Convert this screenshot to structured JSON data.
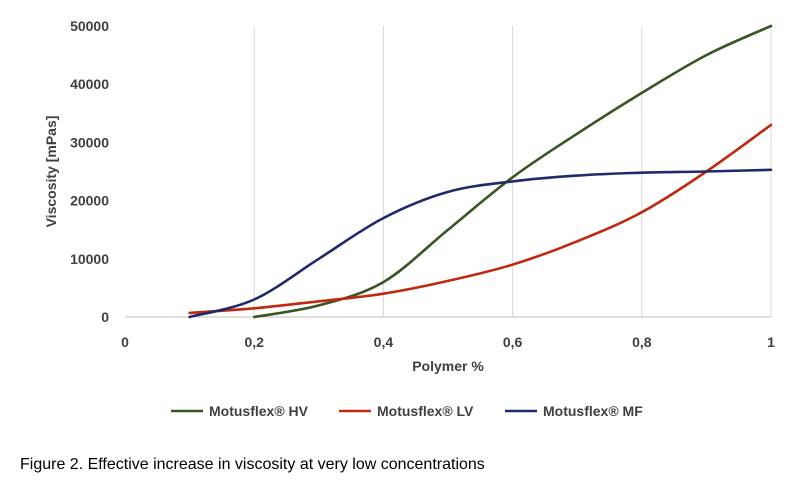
{
  "chart_data": {
    "type": "line",
    "title": "",
    "xlabel": "Polymer %",
    "ylabel": "Viscosity [mPas]",
    "xlim": [
      0,
      1
    ],
    "ylim": [
      0,
      50000
    ],
    "x_ticks": [
      0,
      0.2,
      0.4,
      0.6,
      0.8,
      1
    ],
    "x_tick_labels": [
      "0",
      "0,2",
      "0,4",
      "0,6",
      "0,8",
      "1"
    ],
    "y_ticks": [
      0,
      10000,
      20000,
      30000,
      40000,
      50000
    ],
    "y_tick_labels": [
      "0",
      "10000",
      "20000",
      "30000",
      "40000",
      "50000"
    ],
    "grid": "vertical",
    "legend_position": "bottom",
    "series": [
      {
        "name": "Motusflex® HV",
        "color": "#375623",
        "x": [
          0.2,
          0.3,
          0.4,
          0.5,
          0.6,
          0.7,
          0.8,
          0.9,
          1.0
        ],
        "y": [
          0,
          2000,
          6000,
          15000,
          24000,
          31500,
          38500,
          45000,
          50000
        ]
      },
      {
        "name": "Motusflex® LV",
        "color": "#C0280F",
        "x": [
          0.1,
          0.2,
          0.3,
          0.4,
          0.5,
          0.6,
          0.7,
          0.8,
          0.9,
          1.0
        ],
        "y": [
          700,
          1500,
          2700,
          4000,
          6200,
          9000,
          13000,
          18000,
          25000,
          33000
        ]
      },
      {
        "name": "Motusflex® MF",
        "color": "#1F2A6B",
        "x": [
          0.1,
          0.2,
          0.3,
          0.4,
          0.5,
          0.6,
          0.7,
          0.8,
          0.9,
          1.0
        ],
        "y": [
          0,
          3000,
          10000,
          17000,
          21500,
          23300,
          24300,
          24800,
          25000,
          25300
        ]
      }
    ]
  },
  "caption": "Figure 2. Effective increase in viscosity at very low concentrations"
}
